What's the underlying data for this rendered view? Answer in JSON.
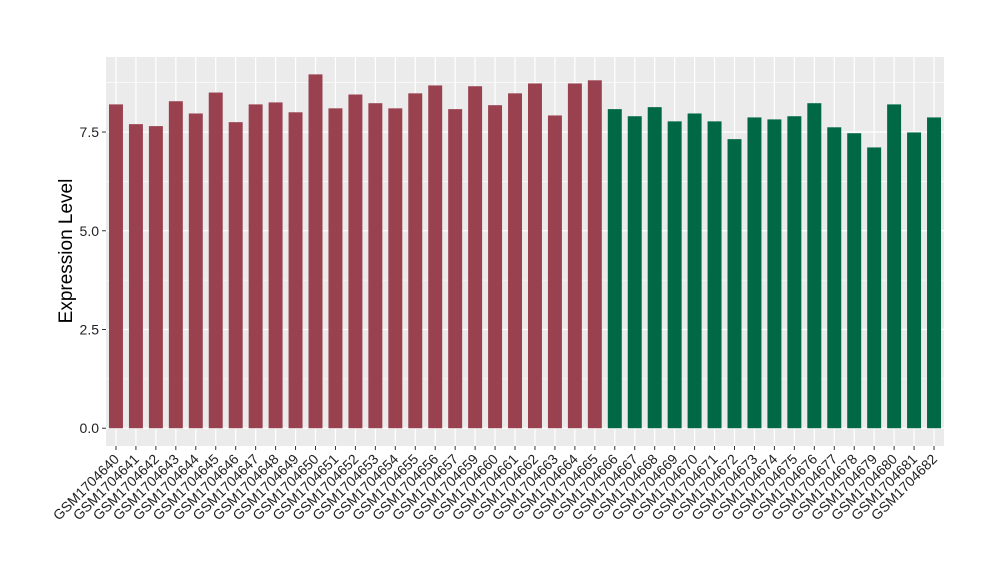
{
  "chart_data": {
    "type": "bar",
    "title": "",
    "xlabel": "",
    "ylabel": "Expression Level",
    "ylim": [
      -0.45,
      9.4
    ],
    "yticks": [
      0.0,
      2.5,
      5.0,
      7.5
    ],
    "ytick_labels": [
      "0.0",
      "2.5",
      "5.0",
      "7.5"
    ],
    "grid": true,
    "legend": "none",
    "categories": [
      "GSM1704640",
      "GSM1704641",
      "GSM1704642",
      "GSM1704643",
      "GSM1704644",
      "GSM1704645",
      "GSM1704646",
      "GSM1704647",
      "GSM1704648",
      "GSM1704649",
      "GSM1704650",
      "GSM1704651",
      "GSM1704652",
      "GSM1704653",
      "GSM1704654",
      "GSM1704655",
      "GSM1704656",
      "GSM1704657",
      "GSM1704659",
      "GSM1704660",
      "GSM1704661",
      "GSM1704662",
      "GSM1704663",
      "GSM1704664",
      "GSM1704665",
      "GSM1704666",
      "GSM1704667",
      "GSM1704668",
      "GSM1704669",
      "GSM1704670",
      "GSM1704671",
      "GSM1704672",
      "GSM1704673",
      "GSM1704674",
      "GSM1704675",
      "GSM1704676",
      "GSM1704677",
      "GSM1704678",
      "GSM1704679",
      "GSM1704680",
      "GSM1704681",
      "GSM1704682"
    ],
    "values": [
      8.2,
      7.7,
      7.65,
      8.28,
      7.97,
      8.5,
      7.75,
      8.2,
      8.25,
      8.0,
      8.96,
      8.1,
      8.45,
      8.23,
      8.1,
      8.48,
      8.68,
      8.08,
      8.66,
      8.18,
      8.48,
      8.73,
      7.92,
      8.73,
      8.81,
      8.08,
      7.9,
      8.13,
      7.77,
      7.97,
      7.77,
      7.32,
      7.87,
      7.82,
      7.9,
      8.23,
      7.62,
      7.47,
      7.11,
      8.2,
      7.49,
      7.87
    ],
    "groups": [
      0,
      0,
      0,
      0,
      0,
      0,
      0,
      0,
      0,
      0,
      0,
      0,
      0,
      0,
      0,
      0,
      0,
      0,
      0,
      0,
      0,
      0,
      0,
      0,
      0,
      1,
      1,
      1,
      1,
      1,
      1,
      1,
      1,
      1,
      1,
      1,
      1,
      1,
      1,
      1,
      1,
      1
    ],
    "group_colors": [
      "#9A4150",
      "#006845"
    ],
    "panel_background": "#EBEBEB"
  }
}
